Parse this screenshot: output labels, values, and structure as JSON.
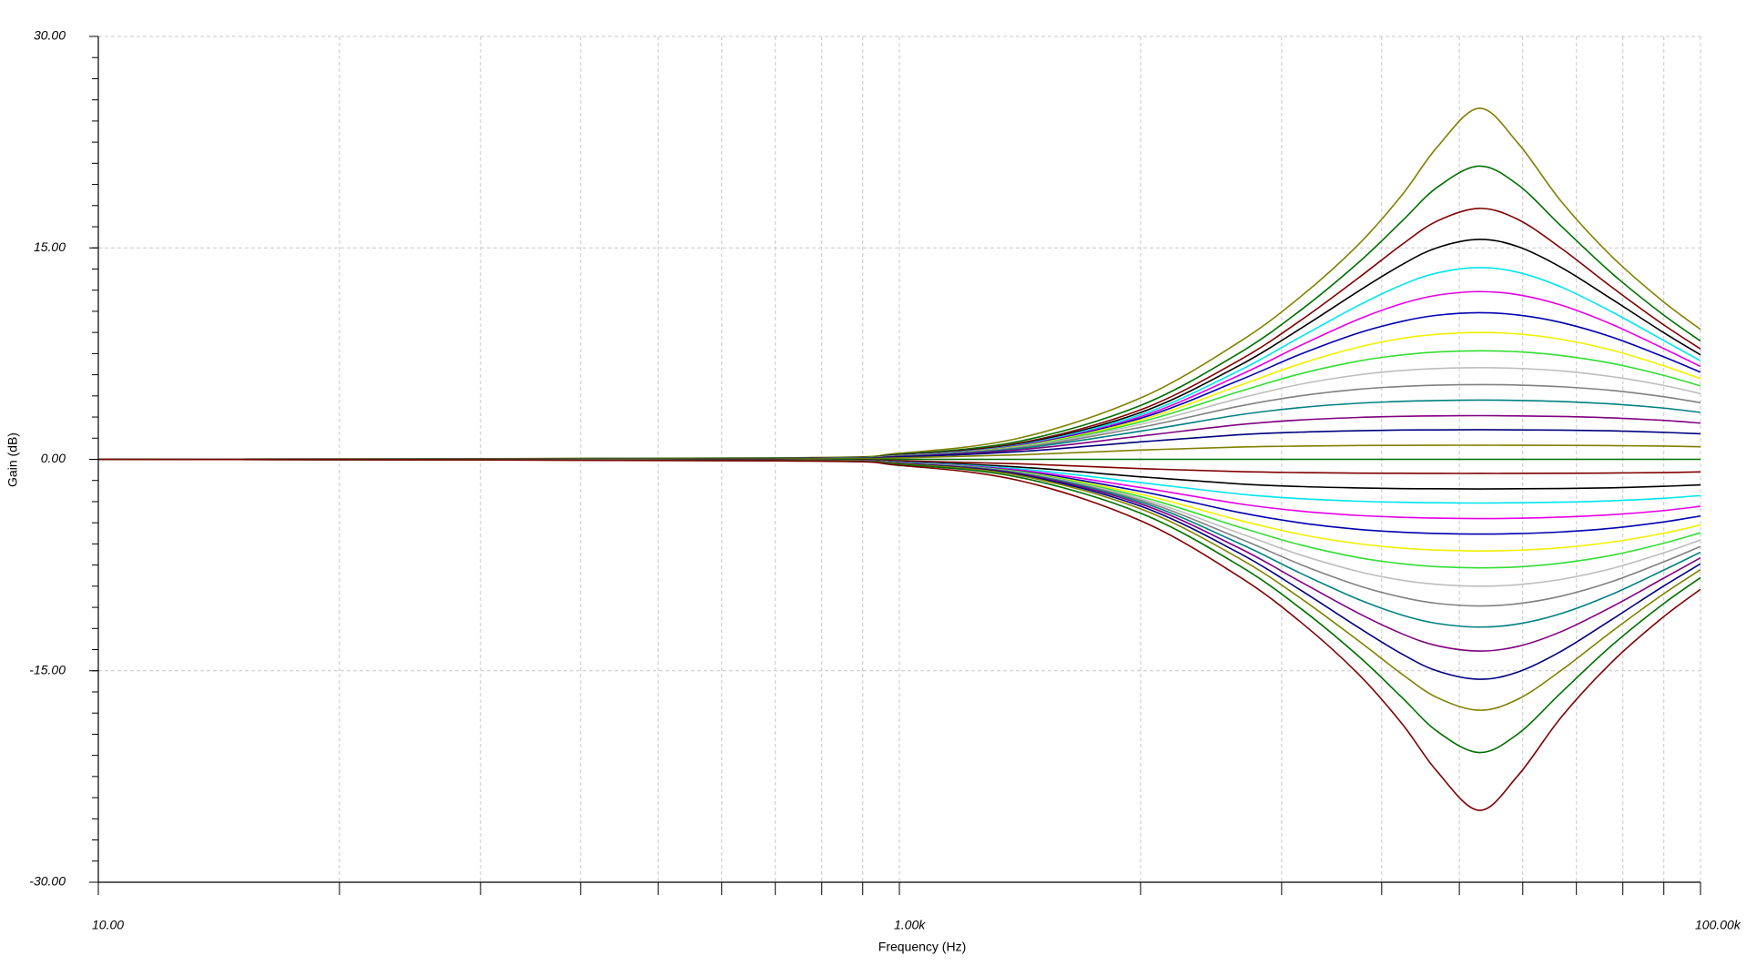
{
  "chart_data": {
    "type": "line",
    "xlabel": "Frequency (Hz)",
    "ylabel": "Gain (dB)",
    "xscale": "log",
    "grid": true,
    "xlim": [
      10,
      100000
    ],
    "ylim": [
      -30,
      30
    ],
    "xticks": [
      {
        "value": 10,
        "label": "10.00"
      },
      {
        "value": 1000,
        "label": "1.00k"
      },
      {
        "value": 100000,
        "label": "100.00k"
      }
    ],
    "yticks": [
      {
        "value": -30,
        "label": "-30.00"
      },
      {
        "value": -15,
        "label": "-15.00"
      },
      {
        "value": 0,
        "label": "0.00"
      },
      {
        "value": 15,
        "label": "15.00"
      },
      {
        "value": 30,
        "label": "30.00"
      }
    ],
    "xgrid_minor": [
      40,
      90,
      160,
      250,
      360,
      490,
      640,
      810,
      4000,
      9000,
      16000,
      25000,
      36000,
      49000,
      64000,
      81000
    ],
    "yminor": [
      -30,
      -28.5,
      -27,
      -25.5,
      -24,
      -22.5,
      -21,
      -19.5,
      -18,
      -16.5,
      -15,
      -13.5,
      -12,
      -10.5,
      -9,
      -7.5,
      -6,
      -4.5,
      -3,
      -1.5,
      0,
      1.5,
      3,
      4.5,
      6,
      7.5,
      9,
      10.5,
      12,
      13.5,
      15,
      16.5,
      18,
      19.5,
      21,
      22.5,
      24,
      25.5,
      27,
      28.5,
      30
    ],
    "x": [
      10,
      500,
      1000,
      2000,
      4000,
      7000,
      10000,
      14000,
      18000,
      22000,
      28000,
      35000,
      45000,
      60000,
      80000,
      100000
    ],
    "series": [
      {
        "color": "#808000",
        "values": [
          0,
          0.11,
          0.43,
          1.52,
          4.35,
          8.26,
          11.5,
          15.24,
          18.77,
          22.14,
          24.9,
          22.44,
          18.26,
          14.4,
          11.28,
          9.22
        ]
      },
      {
        "color": "#006f00",
        "values": [
          0,
          0.09,
          0.36,
          1.29,
          3.82,
          7.48,
          10.54,
          13.96,
          16.91,
          19.29,
          20.8,
          19.48,
          16.52,
          13.21,
          10.34,
          8.39
        ]
      },
      {
        "color": "#800000",
        "values": [
          0,
          0.08,
          0.32,
          1.16,
          3.51,
          6.97,
          9.82,
          12.87,
          15.25,
          16.9,
          17.8,
          17.02,
          14.95,
          12.22,
          9.64,
          7.83
        ]
      },
      {
        "color": "#000000",
        "values": [
          0,
          0.08,
          0.3,
          1.09,
          3.32,
          6.6,
          9.25,
          11.93,
          13.82,
          15.01,
          15.6,
          15.09,
          13.6,
          11.37,
          9.08,
          7.41
        ]
      },
      {
        "color": "#00e5ee",
        "values": [
          0,
          0.07,
          0.28,
          1.04,
          3.16,
          6.25,
          8.66,
          10.92,
          12.38,
          13.22,
          13.6,
          13.27,
          12.21,
          10.47,
          8.51,
          6.99
        ]
      },
      {
        "color": "#e600e6",
        "values": [
          0,
          0.07,
          0.27,
          1.0,
          3.03,
          5.92,
          8.06,
          9.94,
          11.05,
          11.64,
          11.9,
          11.68,
          10.93,
          9.58,
          7.93,
          6.59
        ]
      },
      {
        "color": "#0000b0",
        "values": [
          0,
          0.07,
          0.27,
          0.97,
          2.91,
          5.57,
          7.44,
          8.96,
          9.79,
          10.22,
          10.4,
          10.24,
          9.7,
          8.68,
          7.33,
          6.18
        ]
      },
      {
        "color": "#f0f000",
        "values": [
          0,
          0.07,
          0.26,
          0.94,
          2.79,
          5.2,
          6.77,
          7.96,
          8.58,
          8.87,
          9.0,
          8.89,
          8.51,
          7.75,
          6.68,
          5.72
        ]
      },
      {
        "color": "#33dd33",
        "values": [
          0,
          0.07,
          0.25,
          0.91,
          2.65,
          4.78,
          6.06,
          6.97,
          7.41,
          7.62,
          7.7,
          7.63,
          7.36,
          6.81,
          5.99,
          5.21
        ]
      },
      {
        "color": "#bdbdbd",
        "values": [
          0,
          0.06,
          0.25,
          0.88,
          2.48,
          4.3,
          5.32,
          5.99,
          6.3,
          6.44,
          6.5,
          6.45,
          6.27,
          5.87,
          5.27,
          4.66
        ]
      },
      {
        "color": "#808080",
        "values": [
          0,
          0.06,
          0.24,
          0.84,
          2.27,
          3.75,
          4.5,
          4.97,
          5.17,
          5.26,
          5.3,
          5.27,
          5.15,
          4.89,
          4.46,
          4.02
        ]
      },
      {
        "color": "#008080",
        "values": [
          0,
          0.06,
          0.22,
          0.77,
          2.0,
          3.14,
          3.67,
          3.98,
          4.11,
          4.17,
          4.2,
          4.18,
          4.1,
          3.93,
          3.65,
          3.33
        ]
      },
      {
        "color": "#800080",
        "values": [
          0,
          0.05,
          0.2,
          0.68,
          1.65,
          2.45,
          2.79,
          2.97,
          3.05,
          3.08,
          3.1,
          3.08,
          3.04,
          2.94,
          2.77,
          2.57
        ]
      },
      {
        "color": "#000080",
        "values": [
          0,
          0.04,
          0.17,
          0.55,
          1.24,
          1.74,
          1.93,
          2.03,
          2.08,
          2.09,
          2.1,
          2.09,
          2.07,
          2.02,
          1.92,
          1.81
        ]
      },
      {
        "color": "#808000",
        "values": [
          0,
          0.03,
          0.1,
          0.32,
          0.66,
          0.87,
          0.94,
          0.98,
          0.99,
          1.0,
          1.0,
          1.0,
          0.99,
          0.97,
          0.94,
          0.89
        ]
      },
      {
        "color": "#006f00",
        "values": [
          0,
          0,
          0,
          0,
          0,
          0,
          0,
          0,
          0,
          0,
          0,
          0,
          0,
          0,
          0,
          0
        ]
      },
      {
        "color": "#800000",
        "values": [
          0,
          -0.03,
          -0.1,
          -0.32,
          -0.66,
          -0.87,
          -0.94,
          -0.98,
          -0.99,
          -1.0,
          -1.0,
          -1.0,
          -0.99,
          -0.97,
          -0.94,
          -0.89
        ]
      },
      {
        "color": "#000000",
        "values": [
          0,
          -0.04,
          -0.17,
          -0.55,
          -1.24,
          -1.74,
          -1.93,
          -2.03,
          -2.08,
          -2.09,
          -2.1,
          -2.09,
          -2.07,
          -2.02,
          -1.92,
          -1.81
        ]
      },
      {
        "color": "#00e5ee",
        "values": [
          0,
          -0.05,
          -0.2,
          -0.68,
          -1.65,
          -2.45,
          -2.79,
          -2.97,
          -3.05,
          -3.08,
          -3.1,
          -3.08,
          -3.04,
          -2.94,
          -2.77,
          -2.57
        ]
      },
      {
        "color": "#e600e6",
        "values": [
          0,
          -0.06,
          -0.22,
          -0.77,
          -2.0,
          -3.14,
          -3.67,
          -3.98,
          -4.11,
          -4.17,
          -4.2,
          -4.18,
          -4.1,
          -3.93,
          -3.65,
          -3.33
        ]
      },
      {
        "color": "#0000b0",
        "values": [
          0,
          -0.06,
          -0.24,
          -0.84,
          -2.27,
          -3.75,
          -4.5,
          -4.97,
          -5.17,
          -5.26,
          -5.3,
          -5.27,
          -5.15,
          -4.89,
          -4.46,
          -4.02
        ]
      },
      {
        "color": "#f0f000",
        "values": [
          0,
          -0.06,
          -0.25,
          -0.88,
          -2.48,
          -4.3,
          -5.32,
          -5.99,
          -6.3,
          -6.44,
          -6.5,
          -6.45,
          -6.27,
          -5.87,
          -5.27,
          -4.66
        ]
      },
      {
        "color": "#33dd33",
        "values": [
          0,
          -0.07,
          -0.25,
          -0.91,
          -2.65,
          -4.78,
          -6.06,
          -6.97,
          -7.41,
          -7.62,
          -7.7,
          -7.63,
          -7.36,
          -6.81,
          -5.99,
          -5.21
        ]
      },
      {
        "color": "#bdbdbd",
        "values": [
          0,
          -0.07,
          -0.26,
          -0.94,
          -2.79,
          -5.2,
          -6.77,
          -7.96,
          -8.58,
          -8.87,
          -9.0,
          -8.89,
          -8.51,
          -7.75,
          -6.68,
          -5.72
        ]
      },
      {
        "color": "#808080",
        "values": [
          0,
          -0.07,
          -0.27,
          -0.97,
          -2.91,
          -5.57,
          -7.44,
          -8.96,
          -9.79,
          -10.22,
          -10.4,
          -10.24,
          -9.7,
          -8.68,
          -7.33,
          -6.18
        ]
      },
      {
        "color": "#008080",
        "values": [
          0,
          -0.07,
          -0.27,
          -1.0,
          -3.03,
          -5.92,
          -8.06,
          -9.94,
          -11.05,
          -11.64,
          -11.9,
          -11.68,
          -10.93,
          -9.58,
          -7.93,
          -6.59
        ]
      },
      {
        "color": "#800080",
        "values": [
          0,
          -0.07,
          -0.28,
          -1.04,
          -3.16,
          -6.25,
          -8.66,
          -10.92,
          -12.38,
          -13.22,
          -13.6,
          -13.27,
          -12.21,
          -10.47,
          -8.51,
          -6.99
        ]
      },
      {
        "color": "#000080",
        "values": [
          0,
          -0.08,
          -0.3,
          -1.09,
          -3.32,
          -6.6,
          -9.25,
          -11.93,
          -13.82,
          -15.01,
          -15.6,
          -15.09,
          -13.6,
          -11.37,
          -9.08,
          -7.41
        ]
      },
      {
        "color": "#808000",
        "values": [
          0,
          -0.08,
          -0.32,
          -1.16,
          -3.51,
          -6.97,
          -9.82,
          -12.87,
          -15.25,
          -16.9,
          -17.8,
          -17.02,
          -14.95,
          -12.22,
          -9.64,
          -7.83
        ]
      },
      {
        "color": "#006f00",
        "values": [
          0,
          -0.09,
          -0.36,
          -1.29,
          -3.82,
          -7.48,
          -10.54,
          -13.96,
          -16.91,
          -19.29,
          -20.8,
          -19.48,
          -16.52,
          -13.21,
          -10.34,
          -8.39
        ]
      },
      {
        "color": "#800000",
        "values": [
          0,
          -0.11,
          -0.43,
          -1.52,
          -4.35,
          -8.26,
          -11.5,
          -15.24,
          -18.77,
          -22.14,
          -24.9,
          -22.44,
          -18.26,
          -14.4,
          -11.28,
          -9.22
        ]
      }
    ]
  }
}
